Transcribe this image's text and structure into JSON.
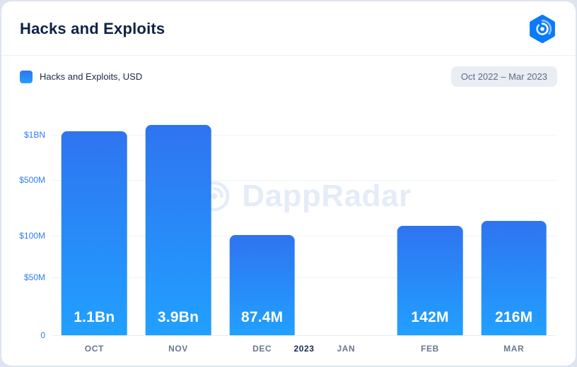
{
  "header": {
    "title": "Hacks and Exploits"
  },
  "legend": {
    "label": "Hacks and Exploits, USD"
  },
  "date_range": "Oct 2022 – Mar 2023",
  "watermark": {
    "text": "DappRadar"
  },
  "colors": {
    "accent": "#1E87FB",
    "bar_gradient_top": "#2F74F0",
    "bar_gradient_bottom": "#21A0FF",
    "title_text": "#0E2247",
    "y_axis_labels": "#2F7CF6",
    "month_labels": "#68788F",
    "year_label": "#16294E",
    "pill_background": "#E9EDF4",
    "watermark": "#E4ECF8"
  },
  "chart_data": {
    "type": "bar",
    "title": "Hacks and Exploits",
    "series_name": "Hacks and Exploits, USD",
    "categories": [
      "OCT",
      "NOV",
      "DEC",
      "JAN",
      "FEB",
      "MAR"
    ],
    "values_usd": [
      1100000000,
      3900000000,
      87400000,
      null,
      142000000,
      216000000
    ],
    "bar_labels": [
      "1.1Bn",
      "3.9Bn",
      "87.4M",
      null,
      "142M",
      "216M"
    ],
    "year_marker": {
      "label": "2023",
      "between": [
        "DEC",
        "JAN"
      ]
    },
    "y_axis": {
      "scale": "non-linear",
      "ticks": [
        {
          "label": "$1BN",
          "pct": 13.8
        },
        {
          "label": "$500M",
          "pct": 33.2
        },
        {
          "label": "$100M",
          "pct": 57.2
        },
        {
          "label": "$50M",
          "pct": 75.1
        },
        {
          "label": "0",
          "pct": 100
        }
      ]
    },
    "bar_heights_pct": [
      87.5,
      90.2,
      43.0,
      0,
      47.0,
      49.0
    ],
    "grid": true,
    "legend_position": "top-left",
    "period": "Oct 2022 – Mar 2023"
  }
}
